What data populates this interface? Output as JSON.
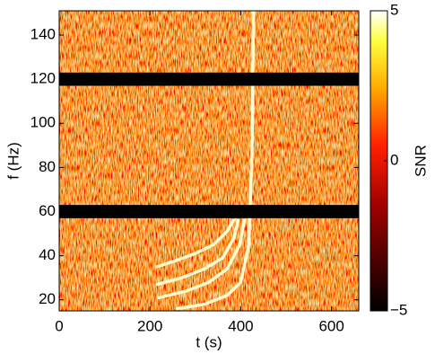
{
  "chart_data": {
    "type": "spectrogram",
    "xlabel": "t (s)",
    "ylabel": "f (Hz)",
    "colorbar_label": "SNR",
    "xlim": [
      0,
      660
    ],
    "xticks": [
      0,
      200,
      400,
      600
    ],
    "ylim": [
      15,
      151
    ],
    "yticks": [
      20,
      40,
      60,
      80,
      100,
      120,
      140
    ],
    "clim": [
      -5,
      5
    ],
    "cticks": [
      {
        "value": -5,
        "label": "−5"
      },
      0,
      5
    ],
    "colormap": "hot",
    "notches": [
      [
        57,
        63
      ],
      [
        117,
        123
      ]
    ],
    "series": [
      {
        "color": "#fffbd0",
        "x": [
          216,
          260,
          300,
          340,
          370,
          384
        ],
        "values": [
          35,
          38,
          41,
          45,
          51,
          56
        ]
      },
      {
        "color": "#fffbd0",
        "x": [
          216,
          270,
          320,
          360,
          385,
          394
        ],
        "values": [
          27,
          30,
          34,
          39,
          48,
          56
        ]
      },
      {
        "color": "#fffbd0",
        "x": [
          220,
          280,
          330,
          370,
          398,
          408
        ],
        "values": [
          21,
          24,
          28,
          34,
          45,
          56
        ]
      },
      {
        "color": "#fffbd0",
        "x": [
          260,
          320,
          370,
          400,
          418,
          425,
          428
        ],
        "values": [
          16,
          18,
          22,
          28,
          45,
          90,
          151
        ]
      }
    ]
  }
}
